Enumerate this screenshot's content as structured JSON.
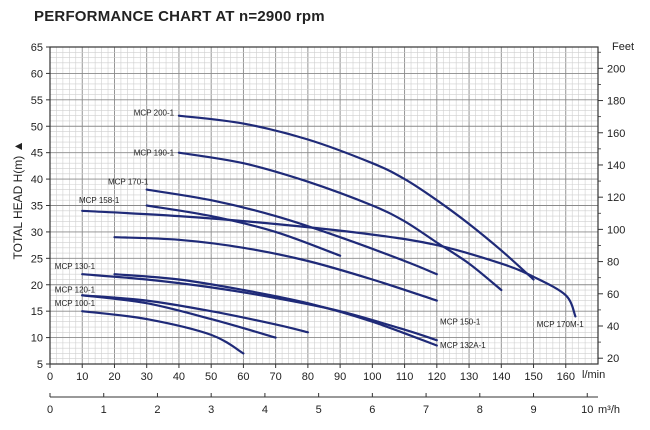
{
  "chart_data": {
    "type": "line",
    "title": "PERFORMANCE CHART AT n=2900 rpm",
    "ylabel": "TOTAL HEAD H(m) ▲",
    "ylabel_right": "Feet",
    "xlabel": "l/min",
    "xlabel_secondary": "m³/h",
    "xlim": [
      0,
      170
    ],
    "ylim": [
      5,
      65
    ],
    "x_ticks": [
      0,
      10,
      20,
      30,
      40,
      50,
      60,
      70,
      80,
      90,
      100,
      110,
      120,
      130,
      140,
      150,
      160
    ],
    "y_ticks": [
      5,
      10,
      15,
      20,
      25,
      30,
      35,
      40,
      45,
      50,
      55,
      60,
      65
    ],
    "right_ticks": [
      20,
      40,
      60,
      80,
      100,
      120,
      140,
      160,
      180,
      200
    ],
    "secondary_x_ticks": [
      0,
      1,
      2,
      3,
      4,
      5,
      6,
      7,
      8,
      9,
      10
    ],
    "grid": true,
    "series_color": "#1f2a78",
    "series": [
      {
        "name": "MCP 200-1",
        "x": [
          40,
          60,
          80,
          100,
          110,
          120,
          130,
          140,
          150
        ],
        "y": [
          52,
          50.5,
          47.5,
          43,
          40,
          36,
          31.5,
          26.5,
          21
        ]
      },
      {
        "name": "MCP 190-1",
        "x": [
          40,
          60,
          80,
          100,
          110,
          120,
          130,
          140
        ],
        "y": [
          45,
          43,
          39.5,
          35,
          32,
          28,
          24,
          19
        ]
      },
      {
        "name": "MCP 170-1",
        "x": [
          30,
          50,
          70,
          90,
          110,
          120
        ],
        "y": [
          38,
          36,
          33,
          29,
          24.5,
          22
        ]
      },
      {
        "name": "MCP 158-1",
        "x": [
          10,
          40,
          70,
          100,
          120,
          140,
          150,
          160,
          163
        ],
        "y": [
          34,
          33,
          31.5,
          29.5,
          27.5,
          24,
          21.5,
          18,
          14
        ]
      },
      {
        "name": "MCP 170M-1",
        "x": [
          30,
          50,
          70,
          90
        ],
        "y": [
          35,
          33,
          30,
          25.5
        ]
      },
      {
        "name": "",
        "x": [
          20,
          40,
          60,
          80,
          100,
          120
        ],
        "y": [
          29,
          28.5,
          27,
          24.5,
          21,
          17
        ]
      },
      {
        "name": "MCP 130-1",
        "x": [
          10,
          30,
          50,
          70,
          90,
          110,
          120
        ],
        "y": [
          22,
          21,
          19.5,
          17.5,
          15,
          11.5,
          9.5
        ]
      },
      {
        "name": "MCP 150-1",
        "x": [
          20,
          40,
          60,
          80,
          100,
          120
        ],
        "y": [
          22,
          21,
          19,
          16.5,
          13,
          8.5
        ]
      },
      {
        "name": "MCP 120-1",
        "x": [
          10,
          30,
          50,
          70,
          80
        ],
        "y": [
          18,
          17,
          15,
          12.5,
          11
        ]
      },
      {
        "name": "MCP 132A-1",
        "x": [
          10,
          30,
          50,
          70
        ],
        "y": [
          18,
          16.5,
          13.5,
          10
        ]
      },
      {
        "name": "MCP 100-1",
        "x": [
          10,
          30,
          50,
          60
        ],
        "y": [
          15,
          13.5,
          10.5,
          7
        ]
      }
    ],
    "labels": [
      {
        "text": "MCP 200-1",
        "x": 38.5,
        "y": 52
      },
      {
        "text": "MCP 190-1",
        "x": 38.5,
        "y": 44.5
      },
      {
        "text": "MCP 170-1",
        "x": 30.5,
        "y": 39
      },
      {
        "text": "MCP 158-1",
        "x": 21.5,
        "y": 35.5
      },
      {
        "text": "MCP 130-1",
        "x": 14,
        "y": 23
      },
      {
        "text": "MCP 120-1",
        "x": 14,
        "y": 18.5
      },
      {
        "text": "MCP 100-1",
        "x": 14,
        "y": 16
      },
      {
        "text": "MCP 150-1",
        "x": 121,
        "y": 12.5
      },
      {
        "text": "MCP 132A-1",
        "x": 121,
        "y": 8
      },
      {
        "text": "MCP 170M-1",
        "x": 151,
        "y": 12
      }
    ]
  }
}
